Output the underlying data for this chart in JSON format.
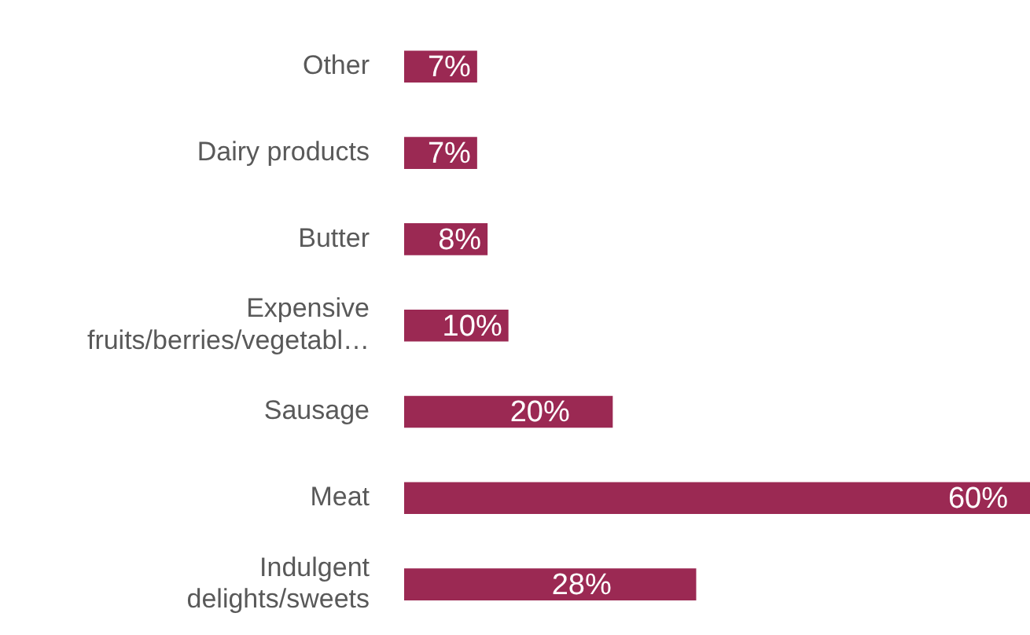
{
  "chart_data": {
    "type": "bar",
    "orientation": "horizontal",
    "categories": [
      "Other",
      "Dairy products",
      "Butter",
      "Expensive fruits/berries/vegetabl…",
      "Sausage",
      "Meat",
      "Indulgent delights/sweets"
    ],
    "values": [
      7,
      7,
      8,
      10,
      20,
      60,
      28
    ],
    "value_labels": [
      "7%",
      "7%",
      "8%",
      "10%",
      "20%",
      "60%",
      "28%"
    ],
    "color": "#9b2953",
    "grid": false,
    "legend": false
  }
}
